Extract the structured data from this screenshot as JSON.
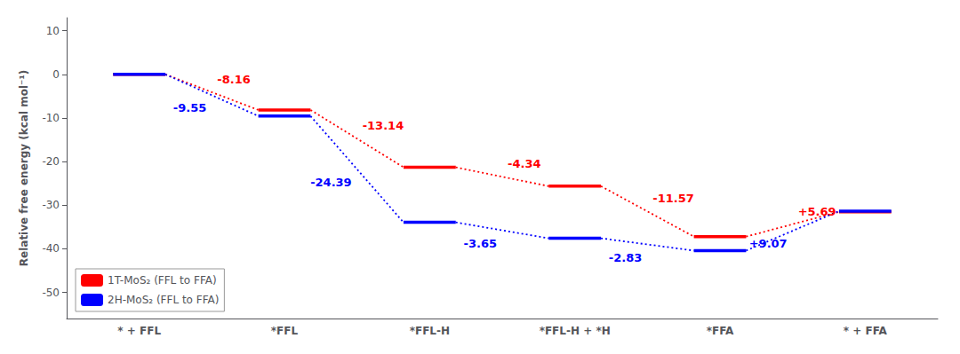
{
  "chart_data": {
    "type": "line",
    "marker": "level",
    "line_style": "dotted",
    "categories": [
      "* + FFL",
      "*FFL",
      "*FFL-H",
      "*FFL-H + *H",
      "*FFA",
      "* + FFA"
    ],
    "series": [
      {
        "name": "1T-MoS₂ (FFL to FFA)",
        "color": "#FF0000",
        "values": [
          0.0,
          -8.16,
          -21.3,
          -25.64,
          -37.21,
          -31.52
        ],
        "annotations": [
          "-8.16",
          "-13.14",
          "-4.34",
          "-11.57",
          "+5.69"
        ]
      },
      {
        "name": "2H-MoS₂ (FFL to FFA)",
        "color": "#0000FF",
        "values": [
          0.0,
          -9.55,
          -33.94,
          -37.59,
          -40.42,
          -31.35
        ],
        "annotations": [
          "-9.55",
          "-24.39",
          "-3.65",
          "-2.83",
          "+9.07"
        ]
      }
    ],
    "y_label": "Relative free energy (kcal mol⁻¹)",
    "ylim": [
      -56,
      13
    ],
    "yticks": [
      10,
      0,
      -10,
      -20,
      -30,
      -40,
      -50
    ],
    "grid": false,
    "legend": "lower left"
  }
}
